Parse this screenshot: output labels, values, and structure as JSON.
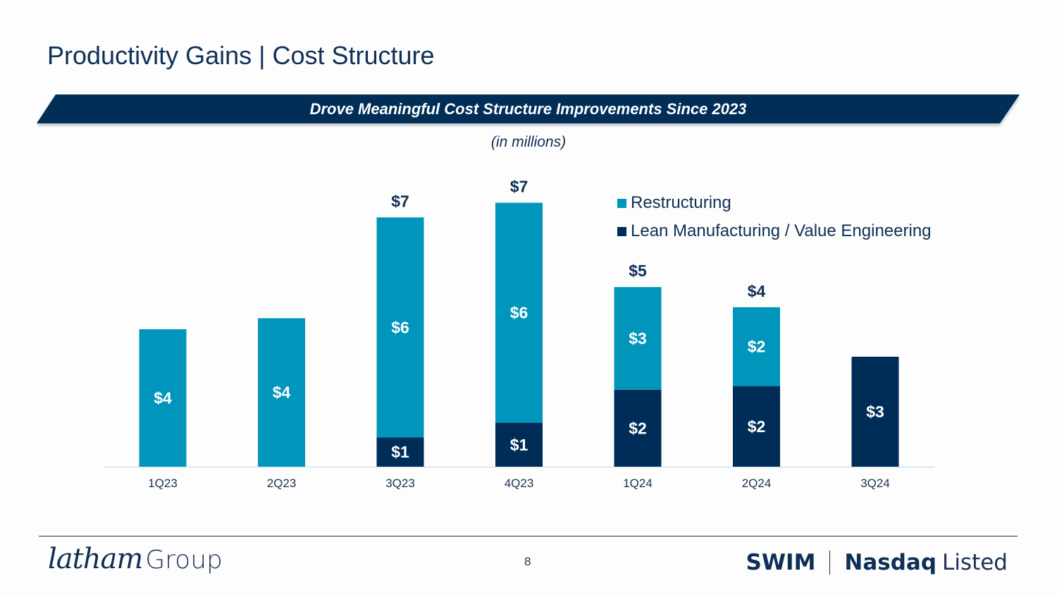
{
  "header": {
    "title": "Productivity Gains | Cost Structure",
    "banner": "Drove Meaningful Cost Structure Improvements Since 2023",
    "units": "(in millions)"
  },
  "colors": {
    "restructuring": "#0096bb",
    "lean": "#002d57",
    "banner": "#002d57",
    "total_label": "#0e2f56"
  },
  "chart_data": {
    "type": "bar",
    "stacked": true,
    "title": "Drove Meaningful Cost Structure Improvements Since 2023",
    "subtitle": "(in millions)",
    "xlabel": "",
    "ylabel": "",
    "ylim": [
      0,
      8
    ],
    "grid": false,
    "legend_position": "top-right",
    "categories": [
      "1Q23",
      "2Q23",
      "3Q23",
      "4Q23",
      "1Q24",
      "2Q24",
      "3Q24"
    ],
    "series": [
      {
        "name": "Lean Manufacturing / Value Engineering",
        "values": [
          0,
          0,
          0.8,
          1.2,
          2.1,
          2.2,
          3.0
        ],
        "labels": [
          "",
          "",
          "$1",
          "$1",
          "$2",
          "$2",
          "$3"
        ]
      },
      {
        "name": "Restructuring",
        "values": [
          3.75,
          4.05,
          6.0,
          6.0,
          2.8,
          2.15,
          0
        ],
        "labels": [
          "$4",
          "$4",
          "$6",
          "$6",
          "$3",
          "$2",
          ""
        ]
      }
    ],
    "totals": [
      "",
      "",
      "$7",
      "$7",
      "$5",
      "$4",
      ""
    ]
  },
  "legend": [
    {
      "label": "Restructuring",
      "color": "#0096bb"
    },
    {
      "label": "Lean Manufacturing / Value Engineering",
      "color": "#002d57"
    }
  ],
  "footer": {
    "logo_script": "latham",
    "logo_word": "Group",
    "page_number": "8",
    "ticker": "SWIM",
    "exchange": "Nasdaq",
    "exchange_suffix": "Listed"
  }
}
